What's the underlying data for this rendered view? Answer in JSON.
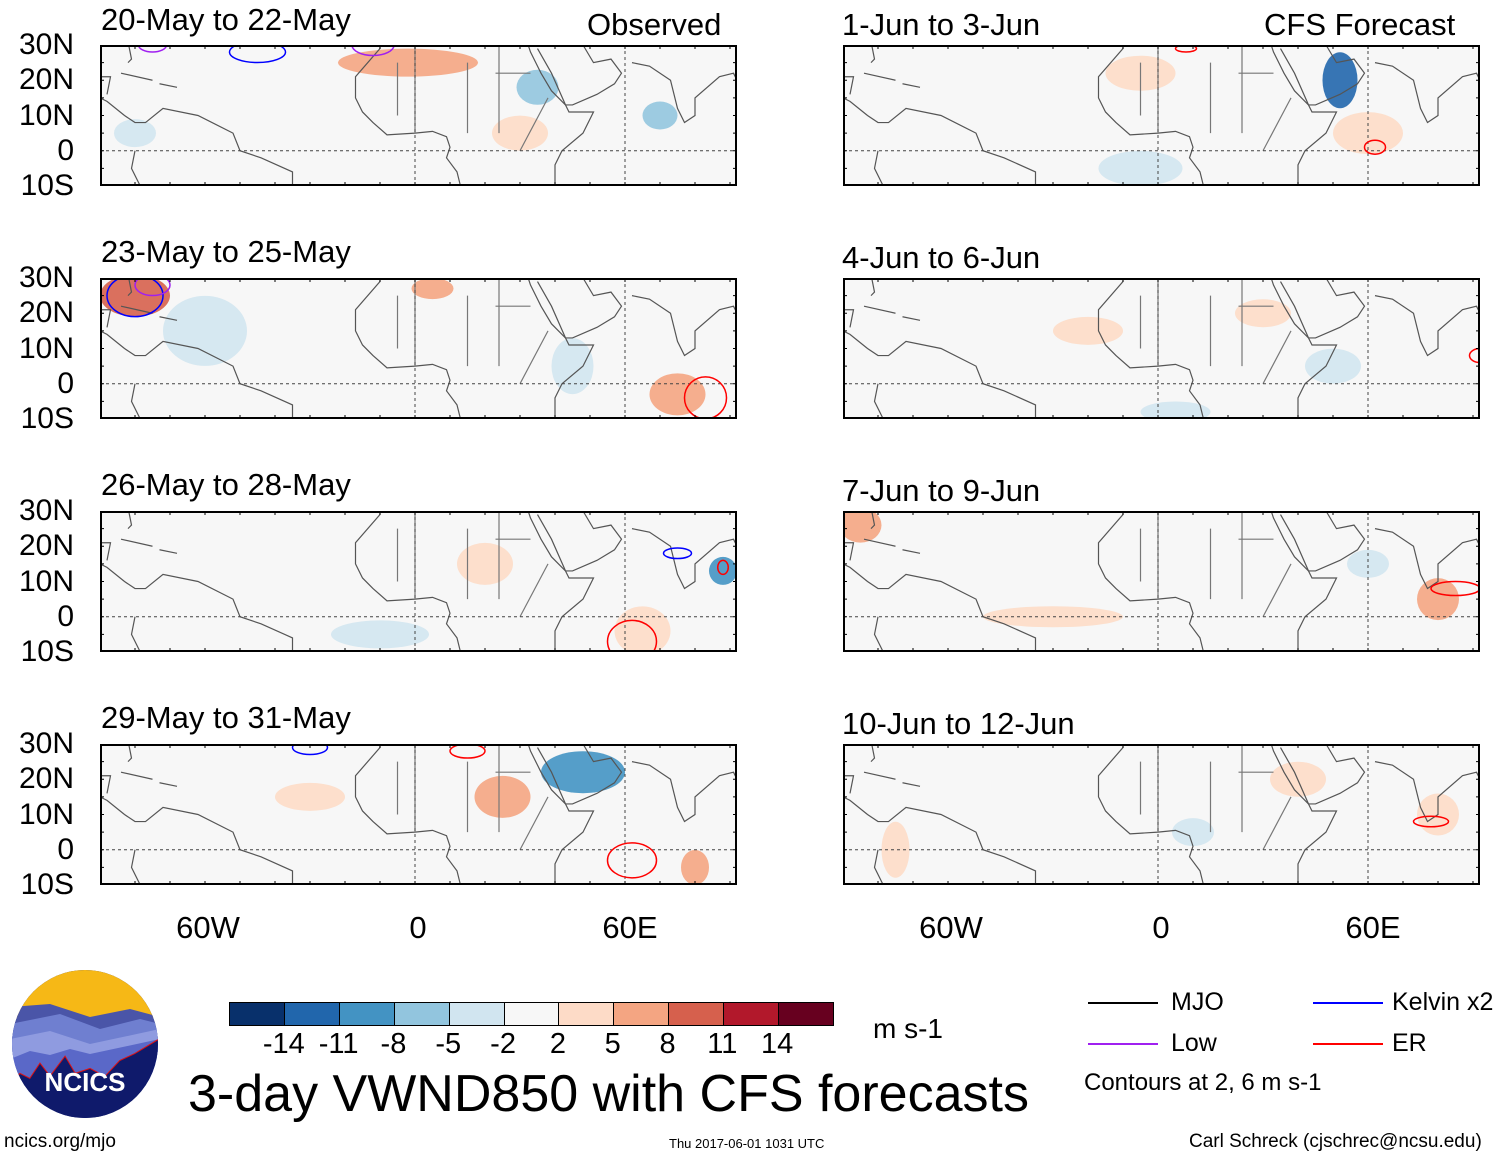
{
  "panels": {
    "observed_label": "Observed",
    "forecast_label": "CFS Forecast",
    "left": [
      {
        "title": "20-May to 22-May"
      },
      {
        "title": "23-May to 25-May"
      },
      {
        "title": "26-May to 28-May"
      },
      {
        "title": "29-May to 31-May"
      }
    ],
    "right": [
      {
        "title": "1-Jun to 3-Jun"
      },
      {
        "title": "4-Jun to 6-Jun"
      },
      {
        "title": "7-Jun to 9-Jun"
      },
      {
        "title": "10-Jun to 12-Jun"
      }
    ]
  },
  "axes": {
    "lat_labels": [
      "30N",
      "20N",
      "10N",
      "0",
      "10S"
    ],
    "lon_labels": [
      "60W",
      "0",
      "60E"
    ],
    "lon_range": [
      -90,
      92
    ],
    "lat_range": [
      -10,
      30
    ]
  },
  "colorbar": {
    "labels": [
      "-14",
      "-11",
      "-8",
      "-5",
      "-2",
      "2",
      "5",
      "8",
      "11",
      "14"
    ],
    "colors": [
      "#08306b",
      "#2166ac",
      "#4393c3",
      "#92c5de",
      "#d1e5f0",
      "#f7f7f7",
      "#fddbc7",
      "#f4a582",
      "#d6604d",
      "#b2182b",
      "#67001f"
    ],
    "units": "m s-1"
  },
  "legend": {
    "items": [
      {
        "label": "MJO",
        "color": "#000000"
      },
      {
        "label": "Kelvin x2",
        "color": "#0000ff"
      },
      {
        "label": "Low",
        "color": "#a020f0"
      },
      {
        "label": "ER",
        "color": "#ff0000"
      }
    ],
    "contours_note": "Contours at 2, 6 m s-1"
  },
  "title": "3-day VWND850 with CFS forecasts",
  "logo_text": "NCICS",
  "footer": {
    "url": "ncics.org/mjo",
    "timestamp": "Thu 2017-06-01 1031 UTC",
    "author": "Carl Schreck (cjschrec@ncsu.edu)"
  },
  "features": [
    [
      [
        -2,
        25,
        20,
        4,
        5,
        "#f4a582"
      ],
      [
        35,
        18,
        6,
        5,
        -5,
        "#92c5de"
      ],
      [
        70,
        10,
        5,
        4,
        -5,
        "#92c5de"
      ],
      [
        -80,
        5,
        6,
        4,
        -2,
        "#d1e5f0"
      ],
      [
        30,
        5,
        8,
        5,
        3,
        "#fddbc7"
      ]
    ],
    [
      [
        -80,
        25,
        10,
        6,
        8,
        "#d6604d"
      ],
      [
        -60,
        15,
        12,
        10,
        -3,
        "#d1e5f0"
      ],
      [
        75,
        -3,
        8,
        6,
        6,
        "#f4a582"
      ],
      [
        45,
        5,
        6,
        8,
        -3,
        "#d1e5f0"
      ],
      [
        5,
        27,
        6,
        3,
        5,
        "#f4a582"
      ]
    ],
    [
      [
        88,
        13,
        4,
        4,
        -8,
        "#4393c3"
      ],
      [
        65,
        -4,
        8,
        7,
        3,
        "#fddbc7"
      ],
      [
        -10,
        -5,
        14,
        4,
        -3,
        "#d1e5f0"
      ],
      [
        20,
        15,
        8,
        6,
        3,
        "#fddbc7"
      ]
    ],
    [
      [
        48,
        22,
        12,
        6,
        -8,
        "#4393c3"
      ],
      [
        25,
        15,
        8,
        6,
        5,
        "#f4a582"
      ],
      [
        -30,
        15,
        10,
        4,
        3,
        "#fddbc7"
      ],
      [
        80,
        -5,
        4,
        5,
        5,
        "#f4a582"
      ]
    ],
    [
      [
        52,
        20,
        5,
        8,
        -10,
        "#2166ac"
      ],
      [
        -5,
        -5,
        12,
        5,
        -3,
        "#d1e5f0"
      ],
      [
        60,
        5,
        10,
        6,
        3,
        "#fddbc7"
      ],
      [
        -5,
        22,
        10,
        5,
        3,
        "#fddbc7"
      ]
    ],
    [
      [
        -20,
        15,
        10,
        4,
        3,
        "#fddbc7"
      ],
      [
        5,
        -8,
        10,
        3,
        -3,
        "#d1e5f0"
      ],
      [
        50,
        5,
        8,
        5,
        -3,
        "#d1e5f0"
      ],
      [
        30,
        20,
        8,
        4,
        3,
        "#fddbc7"
      ]
    ],
    [
      [
        -85,
        26,
        6,
        5,
        5,
        "#f4a582"
      ],
      [
        -30,
        0,
        20,
        3,
        3,
        "#fddbc7"
      ],
      [
        80,
        5,
        6,
        6,
        5,
        "#f4a582"
      ],
      [
        60,
        15,
        6,
        4,
        -3,
        "#d1e5f0"
      ]
    ],
    [
      [
        80,
        10,
        6,
        6,
        3,
        "#fddbc7"
      ],
      [
        40,
        20,
        8,
        5,
        3,
        "#fddbc7"
      ],
      [
        -75,
        0,
        4,
        8,
        3,
        "#fddbc7"
      ],
      [
        10,
        5,
        6,
        4,
        -3,
        "#d1e5f0"
      ]
    ]
  ],
  "contours": [
    [
      [
        -45,
        28,
        8,
        3,
        "#0000ff"
      ],
      [
        -12,
        30,
        6,
        3,
        "#a020f0"
      ],
      [
        -75,
        30,
        4,
        2,
        "#a020f0"
      ]
    ],
    [
      [
        -80,
        25,
        8,
        6,
        "#0000ff"
      ],
      [
        -75,
        28,
        5,
        3,
        "#a020f0"
      ],
      [
        83,
        -4,
        6,
        6,
        "#ff0000"
      ]
    ],
    [
      [
        62,
        -7,
        7,
        6,
        "#ff0000"
      ],
      [
        75,
        18,
        4,
        1.5,
        "#0000ff"
      ],
      [
        88,
        14,
        1.5,
        2,
        "#ff0000"
      ]
    ],
    [
      [
        62,
        -3,
        7,
        5,
        "#ff0000"
      ],
      [
        -30,
        29,
        5,
        2,
        "#0000ff"
      ],
      [
        15,
        28,
        5,
        2,
        "#ff0000"
      ]
    ],
    [
      [
        62,
        1,
        3,
        2,
        "#ff0000"
      ],
      [
        8,
        29,
        3,
        1,
        "#ff0000"
      ]
    ],
    [
      [
        92,
        8,
        3,
        2,
        "#ff0000"
      ]
    ],
    [
      [
        85,
        8,
        7,
        2,
        "#ff0000"
      ]
    ],
    [
      [
        78,
        8,
        5,
        1.5,
        "#ff0000"
      ]
    ]
  ]
}
